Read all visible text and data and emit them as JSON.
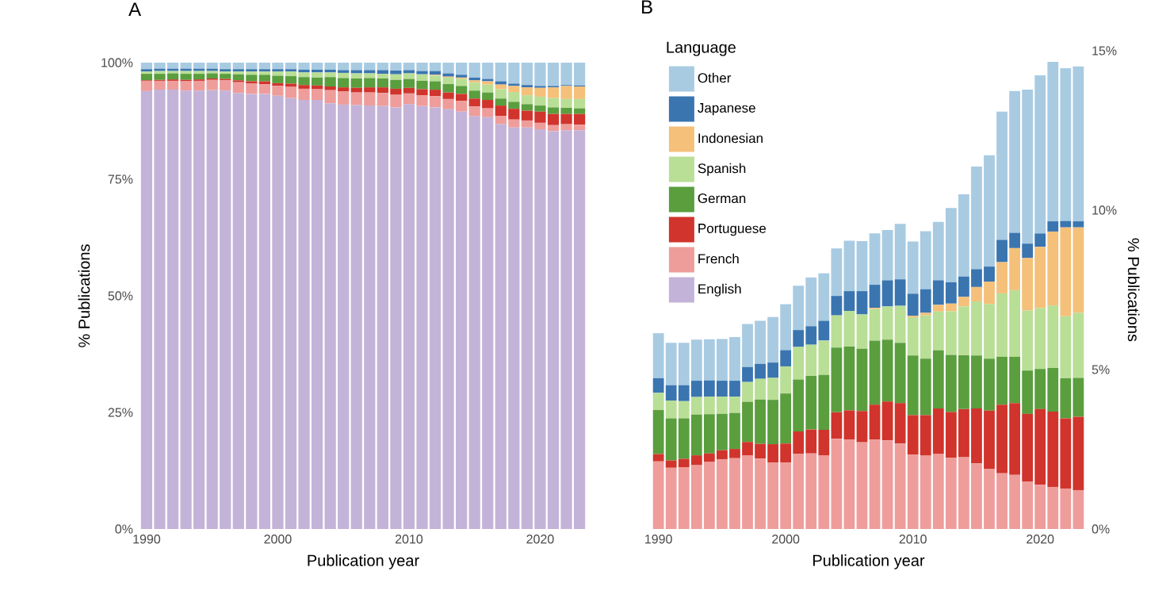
{
  "chart_data": [
    {
      "type": "bar",
      "title": "A",
      "xlabel": "Publication year",
      "ylabel": "% Publications",
      "stacked": true,
      "legend": false,
      "x": [
        1990,
        1991,
        1992,
        1993,
        1994,
        1995,
        1996,
        1997,
        1998,
        1999,
        2000,
        2001,
        2002,
        2003,
        2004,
        2005,
        2006,
        2007,
        2008,
        2009,
        2010,
        2011,
        2012,
        2013,
        2014,
        2015,
        2016,
        2017,
        2018,
        2019,
        2020,
        2021,
        2022,
        2023
      ],
      "xlim": [
        1989.4,
        2023.6
      ],
      "xticks": [
        1990,
        2000,
        2010,
        2020
      ],
      "ylim": [
        0,
        100
      ],
      "yticks": [
        {
          "value": 0,
          "label": "0%"
        },
        {
          "value": 25,
          "label": "25%"
        },
        {
          "value": 50,
          "label": "50%"
        },
        {
          "value": 75,
          "label": "75%"
        },
        {
          "value": 100,
          "label": "100%"
        }
      ],
      "series": [
        {
          "color": "#c4b3d8",
          "values": [
            93.9,
            94.2,
            94.2,
            94.0,
            94.0,
            94.1,
            94.0,
            93.5,
            93.3,
            93.3,
            92.9,
            92.4,
            92.0,
            92.0,
            91.3,
            91.0,
            90.9,
            90.8,
            90.7,
            90.4,
            91.1,
            90.7,
            90.4,
            90.0,
            89.5,
            88.5,
            88.3,
            86.8,
            86.1,
            86.1,
            85.7,
            85.3,
            85.5,
            85.5
          ]
        },
        {
          "color": "#ee9d9b",
          "values": [
            2.1,
            1.9,
            1.9,
            2.0,
            2.1,
            2.2,
            2.2,
            2.3,
            2.2,
            2.1,
            2.1,
            2.4,
            2.4,
            2.3,
            2.8,
            2.8,
            2.7,
            2.8,
            2.8,
            2.7,
            2.3,
            2.3,
            2.4,
            2.2,
            2.3,
            2.1,
            1.9,
            1.8,
            1.7,
            1.5,
            1.4,
            1.3,
            1.3,
            1.2
          ]
        },
        {
          "color": "#d0342c",
          "values": [
            0.2,
            0.2,
            0.3,
            0.3,
            0.3,
            0.3,
            0.3,
            0.4,
            0.5,
            0.6,
            0.6,
            0.7,
            0.8,
            0.8,
            0.8,
            0.9,
            1.0,
            1.1,
            1.2,
            1.3,
            1.2,
            1.3,
            1.4,
            1.4,
            1.5,
            1.7,
            1.8,
            2.2,
            2.3,
            2.1,
            2.4,
            2.4,
            2.2,
            2.3
          ]
        },
        {
          "color": "#5a9e3e",
          "values": [
            1.4,
            1.3,
            1.3,
            1.3,
            1.2,
            1.1,
            1.1,
            1.3,
            1.4,
            1.4,
            1.6,
            1.6,
            1.7,
            1.7,
            2.0,
            2.0,
            2.0,
            2.0,
            1.9,
            1.9,
            1.9,
            1.8,
            1.8,
            1.8,
            1.7,
            1.7,
            1.6,
            1.5,
            1.5,
            1.4,
            1.3,
            1.4,
            1.3,
            1.2
          ]
        },
        {
          "color": "#b9de96",
          "values": [
            0.5,
            0.6,
            0.5,
            0.6,
            0.6,
            0.5,
            0.5,
            0.6,
            0.7,
            0.7,
            0.9,
            1.0,
            1.0,
            1.1,
            1.0,
            1.1,
            1.1,
            1.0,
            1.0,
            1.2,
            1.2,
            1.4,
            1.2,
            1.4,
            1.5,
            1.7,
            1.7,
            2.0,
            2.1,
            1.9,
            1.9,
            2.0,
            1.9,
            2.0
          ]
        },
        {
          "color": "#f4c07a",
          "values": [
            0,
            0,
            0,
            0,
            0,
            0,
            0,
            0,
            0,
            0,
            0,
            0,
            0,
            0,
            0,
            0,
            0,
            0,
            0,
            0,
            0,
            0,
            0.2,
            0.2,
            0.3,
            0.5,
            0.7,
            1.0,
            1.3,
            1.7,
            1.9,
            2.3,
            2.8,
            2.7
          ]
        },
        {
          "color": "#3a75b0",
          "values": [
            0.5,
            0.5,
            0.5,
            0.5,
            0.5,
            0.5,
            0.5,
            0.5,
            0.5,
            0.5,
            0.5,
            0.5,
            0.6,
            0.6,
            0.6,
            0.6,
            0.7,
            0.7,
            0.8,
            0.8,
            0.7,
            0.7,
            0.8,
            0.7,
            0.6,
            0.6,
            0.5,
            0.7,
            0.5,
            0.5,
            0.4,
            0.3,
            0.2,
            0.2
          ]
        },
        {
          "color": "#a8cbe2",
          "values": [
            1.4,
            1.3,
            1.3,
            1.3,
            1.3,
            1.3,
            1.4,
            1.4,
            1.4,
            1.4,
            1.4,
            1.4,
            1.5,
            1.5,
            1.5,
            1.6,
            1.6,
            1.6,
            1.6,
            1.7,
            1.6,
            1.8,
            1.8,
            2.3,
            2.6,
            3.2,
            3.5,
            4.0,
            4.5,
            4.8,
            5.0,
            5.0,
            4.8,
            4.9
          ]
        }
      ]
    },
    {
      "type": "bar",
      "title": "B",
      "xlabel": "Publication year",
      "ylabel": "% Publications",
      "stacked": true,
      "legend": "top left",
      "legend_title": "Language",
      "x": [
        1990,
        1991,
        1992,
        1993,
        1994,
        1995,
        1996,
        1997,
        1998,
        1999,
        2000,
        2001,
        2002,
        2003,
        2004,
        2005,
        2006,
        2007,
        2008,
        2009,
        2010,
        2011,
        2012,
        2013,
        2014,
        2015,
        2016,
        2017,
        2018,
        2019,
        2020,
        2021,
        2022,
        2023
      ],
      "xlim": [
        1989.4,
        2023.6
      ],
      "xticks": [
        1990,
        2000,
        2010,
        2020
      ],
      "ylim": [
        0,
        15
      ],
      "yticks": [
        {
          "value": 0,
          "label": "0%"
        },
        {
          "value": 5,
          "label": "5%"
        },
        {
          "value": 10,
          "label": "10%"
        },
        {
          "value": 15,
          "label": "15%"
        }
      ],
      "series": [
        {
          "name": "English",
          "color": "#c4b3d8",
          "values": [
            null,
            null,
            null,
            null,
            null,
            null,
            null,
            null,
            null,
            null,
            null,
            null,
            null,
            null,
            null,
            null,
            null,
            null,
            null,
            null,
            null,
            null,
            null,
            null,
            null,
            null,
            null,
            null,
            null,
            null,
            null,
            null,
            null,
            null
          ]
        },
        {
          "name": "French",
          "color": "#ee9d9b",
          "values": [
            2.12,
            1.92,
            1.94,
            2.0,
            2.1,
            2.19,
            2.22,
            2.31,
            2.21,
            2.08,
            2.08,
            2.36,
            2.37,
            2.31,
            2.83,
            2.8,
            2.72,
            2.8,
            2.78,
            2.68,
            2.33,
            2.3,
            2.35,
            2.23,
            2.25,
            2.06,
            1.89,
            1.75,
            1.7,
            1.48,
            1.39,
            1.32,
            1.27,
            1.22
          ]
        },
        {
          "name": "Portuguese",
          "color": "#d0342c",
          "values": [
            0.23,
            0.23,
            0.26,
            0.31,
            0.27,
            0.28,
            0.29,
            0.42,
            0.46,
            0.58,
            0.6,
            0.7,
            0.75,
            0.8,
            0.83,
            0.92,
            0.98,
            1.1,
            1.22,
            1.27,
            1.24,
            1.27,
            1.43,
            1.44,
            1.51,
            1.72,
            1.82,
            2.15,
            2.25,
            2.13,
            2.37,
            2.36,
            2.2,
            2.3
          ]
        },
        {
          "name": "German",
          "color": "#5a9e3e",
          "values": [
            1.38,
            1.32,
            1.27,
            1.28,
            1.23,
            1.14,
            1.13,
            1.26,
            1.39,
            1.39,
            1.57,
            1.63,
            1.68,
            1.72,
            2.03,
            2.0,
            1.95,
            2.01,
            1.94,
            1.89,
            1.87,
            1.77,
            1.82,
            1.79,
            1.69,
            1.66,
            1.63,
            1.5,
            1.45,
            1.36,
            1.26,
            1.37,
            1.26,
            1.22
          ]
        },
        {
          "name": "Spanish",
          "color": "#b9de96",
          "values": [
            0.54,
            0.56,
            0.54,
            0.55,
            0.55,
            0.54,
            0.51,
            0.62,
            0.65,
            0.69,
            0.85,
            1.02,
            0.98,
            1.08,
            1.01,
            1.12,
            1.08,
            0.99,
            1.04,
            1.16,
            1.2,
            1.36,
            1.22,
            1.37,
            1.53,
            1.7,
            1.72,
            1.99,
            2.09,
            1.88,
            1.91,
            1.96,
            1.94,
            2.04
          ]
        },
        {
          "name": "Indonesian",
          "color": "#f4c07a",
          "values": [
            0,
            0,
            0,
            0,
            0,
            0,
            0,
            0,
            0,
            0,
            0,
            0,
            0,
            0,
            0,
            0,
            0,
            0.04,
            0,
            0,
            0.05,
            0.08,
            0.21,
            0.24,
            0.3,
            0.45,
            0.7,
            0.98,
            1.32,
            1.65,
            1.92,
            2.32,
            2.79,
            2.68
          ]
        },
        {
          "name": "Japanese",
          "color": "#3a75b0",
          "values": [
            0.46,
            0.48,
            0.5,
            0.51,
            0.51,
            0.5,
            0.5,
            0.47,
            0.47,
            0.48,
            0.51,
            0.53,
            0.58,
            0.62,
            0.61,
            0.62,
            0.73,
            0.72,
            0.82,
            0.83,
            0.69,
            0.74,
            0.77,
            0.67,
            0.64,
            0.56,
            0.47,
            0.7,
            0.48,
            0.45,
            0.42,
            0.32,
            0.2,
            0.19
          ]
        },
        {
          "name": "Other",
          "color": "#a8cbe2",
          "values": [
            1.41,
            1.33,
            1.33,
            1.29,
            1.29,
            1.31,
            1.37,
            1.35,
            1.35,
            1.43,
            1.44,
            1.39,
            1.53,
            1.49,
            1.49,
            1.58,
            1.57,
            1.61,
            1.58,
            1.74,
            1.64,
            1.82,
            1.83,
            2.33,
            2.58,
            3.22,
            3.49,
            4.02,
            4.45,
            4.83,
            4.96,
            5.0,
            4.79,
            4.86
          ]
        }
      ]
    }
  ]
}
